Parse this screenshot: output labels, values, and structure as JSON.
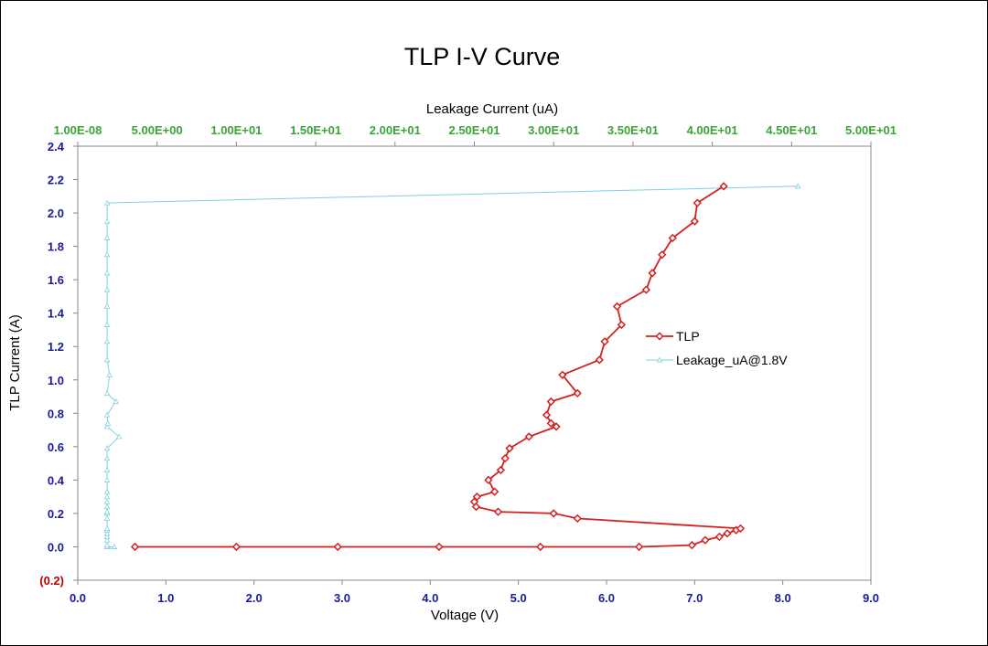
{
  "chart_data": {
    "type": "line",
    "title": "TLP I-V Curve",
    "xlabel": "Voltage (V)",
    "ylabel": "TLP Current (A)",
    "x2label": "Leakage Current (uA)",
    "xlim": [
      0,
      9
    ],
    "ylim": [
      -0.2,
      2.4
    ],
    "x2lim": [
      0,
      50
    ],
    "x_ticks": [
      0,
      1,
      2,
      3,
      4,
      5,
      6,
      7,
      8,
      9
    ],
    "x_tick_labels": [
      "0.0",
      "1.0",
      "2.0",
      "3.0",
      "4.0",
      "5.0",
      "6.0",
      "7.0",
      "8.0",
      "9.0"
    ],
    "y_ticks": [
      -0.2,
      0,
      0.2,
      0.4,
      0.6,
      0.8,
      1.0,
      1.2,
      1.4,
      1.6,
      1.8,
      2.0,
      2.2,
      2.4
    ],
    "y_tick_labels": [
      "(0.2)",
      "0.0",
      "0.2",
      "0.4",
      "0.6",
      "0.8",
      "1.0",
      "1.2",
      "1.4",
      "1.6",
      "1.8",
      "2.0",
      "2.2",
      "2.4"
    ],
    "x2_ticks": [
      0,
      5,
      10,
      15,
      20,
      25,
      30,
      35,
      40,
      45,
      50
    ],
    "x2_tick_labels": [
      "1.00E-08",
      "5.00E+00",
      "1.00E+01",
      "1.50E+01",
      "2.00E+01",
      "2.50E+01",
      "3.00E+01",
      "3.50E+01",
      "4.00E+01",
      "4.50E+01",
      "5.00E+01"
    ],
    "legend_position": "right",
    "series": [
      {
        "name": "TLP",
        "axis": "bottom",
        "color": "#d42020",
        "marker": "diamond",
        "points": [
          [
            0.65,
            0.0
          ],
          [
            1.8,
            0.0
          ],
          [
            2.95,
            0.0
          ],
          [
            4.1,
            0.0
          ],
          [
            5.25,
            0.0
          ],
          [
            6.37,
            0.0
          ],
          [
            6.97,
            0.01
          ],
          [
            7.12,
            0.04
          ],
          [
            7.28,
            0.06
          ],
          [
            7.37,
            0.08
          ],
          [
            7.47,
            0.1
          ],
          [
            7.52,
            0.11
          ],
          [
            5.67,
            0.17
          ],
          [
            5.4,
            0.2
          ],
          [
            4.77,
            0.21
          ],
          [
            4.52,
            0.24
          ],
          [
            4.5,
            0.27
          ],
          [
            4.53,
            0.3
          ],
          [
            4.73,
            0.33
          ],
          [
            4.66,
            0.4
          ],
          [
            4.8,
            0.46
          ],
          [
            4.85,
            0.53
          ],
          [
            4.9,
            0.59
          ],
          [
            5.12,
            0.66
          ],
          [
            5.43,
            0.72
          ],
          [
            5.37,
            0.74
          ],
          [
            5.32,
            0.79
          ],
          [
            5.37,
            0.87
          ],
          [
            5.67,
            0.92
          ],
          [
            5.5,
            1.03
          ],
          [
            5.92,
            1.12
          ],
          [
            5.98,
            1.23
          ],
          [
            6.17,
            1.33
          ],
          [
            6.12,
            1.44
          ],
          [
            6.45,
            1.54
          ],
          [
            6.52,
            1.64
          ],
          [
            6.63,
            1.75
          ],
          [
            6.75,
            1.85
          ],
          [
            7.0,
            1.95
          ],
          [
            7.03,
            2.06
          ],
          [
            7.33,
            2.16
          ]
        ]
      },
      {
        "name": "Leakage_uA@1.8V",
        "axis": "top",
        "color": "#7fd0e0",
        "marker": "triangle",
        "points": [
          [
            2.3,
            0.0
          ],
          [
            1.9,
            0.0
          ],
          [
            1.85,
            0.0
          ],
          [
            1.85,
            0.01
          ],
          [
            1.85,
            0.04
          ],
          [
            1.85,
            0.06
          ],
          [
            1.85,
            0.08
          ],
          [
            1.85,
            0.1
          ],
          [
            1.85,
            0.11
          ],
          [
            1.85,
            0.17
          ],
          [
            1.85,
            0.2
          ],
          [
            1.85,
            0.21
          ],
          [
            1.85,
            0.24
          ],
          [
            1.85,
            0.27
          ],
          [
            1.85,
            0.3
          ],
          [
            1.85,
            0.33
          ],
          [
            1.85,
            0.4
          ],
          [
            1.85,
            0.46
          ],
          [
            1.85,
            0.53
          ],
          [
            1.85,
            0.59
          ],
          [
            2.6,
            0.66
          ],
          [
            1.85,
            0.72
          ],
          [
            1.9,
            0.74
          ],
          [
            1.85,
            0.79
          ],
          [
            2.4,
            0.87
          ],
          [
            1.85,
            0.92
          ],
          [
            2.0,
            1.03
          ],
          [
            1.85,
            1.12
          ],
          [
            1.85,
            1.23
          ],
          [
            1.85,
            1.33
          ],
          [
            1.85,
            1.44
          ],
          [
            1.85,
            1.54
          ],
          [
            1.85,
            1.64
          ],
          [
            1.85,
            1.75
          ],
          [
            1.85,
            1.85
          ],
          [
            1.85,
            1.95
          ],
          [
            1.85,
            2.06
          ],
          [
            45.4,
            2.16
          ]
        ]
      }
    ]
  }
}
